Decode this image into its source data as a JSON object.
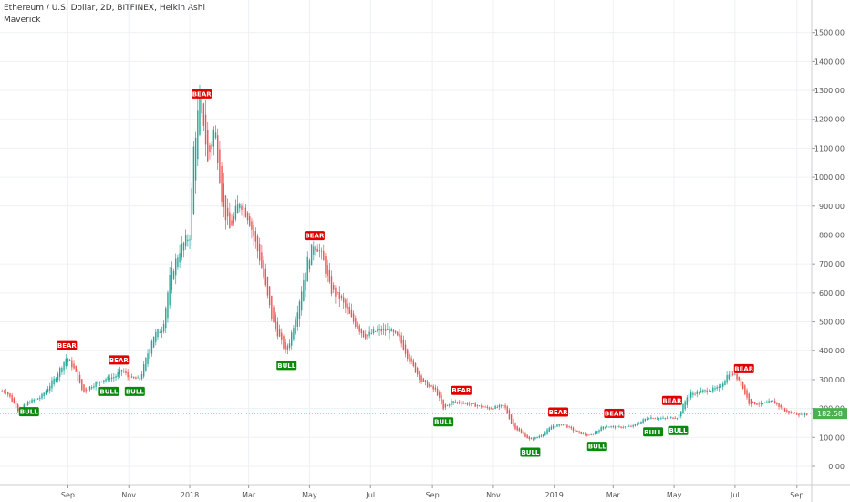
{
  "header": {
    "title": "Ethereum / U.S. Dollar, 2D, BITFINEX, Heikin Ashi",
    "indicator": "Maverick"
  },
  "colors": {
    "up": "#26a69a",
    "down": "#ef5350",
    "bull_label_bg": "#0a8a0a",
    "bear_label_bg": "#e00000",
    "grid": "#eef1f4",
    "price_line": "#26a69a",
    "price_tag_bg": "#4caf50"
  },
  "chart_data": {
    "type": "candlestick",
    "chart_style": "Heikin Ashi",
    "ylim": [
      -60,
      1600
    ],
    "y_ticks": [
      0,
      100,
      200,
      300,
      400,
      500,
      600,
      700,
      800,
      900,
      1000,
      1100,
      1200,
      1300,
      1400,
      1500
    ],
    "y_tick_labels": [
      "0.00",
      "100.00",
      "200.00",
      "300.00",
      "400.00",
      "500.00",
      "600.00",
      "700.00",
      "800.00",
      "900.00",
      "1000.00",
      "1100.00",
      "1200.00",
      "1300.00",
      "1400.00",
      "1500.00"
    ],
    "x_ticks": [
      {
        "label": "Sep",
        "date": "2017-09-01"
      },
      {
        "label": "Nov",
        "date": "2017-11-01"
      },
      {
        "label": "2018",
        "date": "2018-01-01"
      },
      {
        "label": "Mar",
        "date": "2018-03-01"
      },
      {
        "label": "May",
        "date": "2018-05-01"
      },
      {
        "label": "Jul",
        "date": "2018-07-01"
      },
      {
        "label": "Sep",
        "date": "2018-09-01"
      },
      {
        "label": "Nov",
        "date": "2018-11-01"
      },
      {
        "label": "2019",
        "date": "2019-01-01"
      },
      {
        "label": "Mar",
        "date": "2019-03-01"
      },
      {
        "label": "May",
        "date": "2019-05-01"
      },
      {
        "label": "Jul",
        "date": "2019-07-01"
      },
      {
        "label": "Sep",
        "date": "2019-09-01"
      }
    ],
    "price_trend": [
      {
        "date": "2017-07-01",
        "value": 260
      },
      {
        "date": "2017-07-14",
        "value": 190
      },
      {
        "date": "2017-07-22",
        "value": 220
      },
      {
        "date": "2017-08-05",
        "value": 240
      },
      {
        "date": "2017-08-18",
        "value": 300
      },
      {
        "date": "2017-08-31",
        "value": 380
      },
      {
        "date": "2017-09-08",
        "value": 330
      },
      {
        "date": "2017-09-16",
        "value": 255
      },
      {
        "date": "2017-09-25",
        "value": 280
      },
      {
        "date": "2017-10-05",
        "value": 300
      },
      {
        "date": "2017-10-18",
        "value": 310
      },
      {
        "date": "2017-10-25",
        "value": 335
      },
      {
        "date": "2017-11-01",
        "value": 305
      },
      {
        "date": "2017-11-12",
        "value": 300
      },
      {
        "date": "2017-11-25",
        "value": 450
      },
      {
        "date": "2017-12-05",
        "value": 480
      },
      {
        "date": "2017-12-12",
        "value": 650
      },
      {
        "date": "2017-12-22",
        "value": 750
      },
      {
        "date": "2018-01-01",
        "value": 800
      },
      {
        "date": "2018-01-05",
        "value": 1100
      },
      {
        "date": "2018-01-12",
        "value": 1300
      },
      {
        "date": "2018-01-19",
        "value": 1050
      },
      {
        "date": "2018-01-26",
        "value": 1180
      },
      {
        "date": "2018-02-03",
        "value": 900
      },
      {
        "date": "2018-02-10",
        "value": 820
      },
      {
        "date": "2018-02-20",
        "value": 920
      },
      {
        "date": "2018-03-01",
        "value": 860
      },
      {
        "date": "2018-03-12",
        "value": 720
      },
      {
        "date": "2018-03-25",
        "value": 500
      },
      {
        "date": "2018-04-08",
        "value": 390
      },
      {
        "date": "2018-04-20",
        "value": 560
      },
      {
        "date": "2018-04-28",
        "value": 700
      },
      {
        "date": "2018-05-06",
        "value": 780
      },
      {
        "date": "2018-05-14",
        "value": 720
      },
      {
        "date": "2018-05-22",
        "value": 610
      },
      {
        "date": "2018-06-01",
        "value": 580
      },
      {
        "date": "2018-06-12",
        "value": 510
      },
      {
        "date": "2018-06-25",
        "value": 450
      },
      {
        "date": "2018-07-08",
        "value": 470
      },
      {
        "date": "2018-07-20",
        "value": 470
      },
      {
        "date": "2018-07-30",
        "value": 440
      },
      {
        "date": "2018-08-10",
        "value": 360
      },
      {
        "date": "2018-08-22",
        "value": 290
      },
      {
        "date": "2018-09-05",
        "value": 260
      },
      {
        "date": "2018-09-12",
        "value": 195
      },
      {
        "date": "2018-09-20",
        "value": 225
      },
      {
        "date": "2018-10-01",
        "value": 220
      },
      {
        "date": "2018-10-15",
        "value": 210
      },
      {
        "date": "2018-10-28",
        "value": 200
      },
      {
        "date": "2018-11-12",
        "value": 210
      },
      {
        "date": "2018-11-20",
        "value": 140
      },
      {
        "date": "2018-12-08",
        "value": 90
      },
      {
        "date": "2018-12-20",
        "value": 110
      },
      {
        "date": "2018-12-30",
        "value": 140
      },
      {
        "date": "2019-01-10",
        "value": 145
      },
      {
        "date": "2019-01-22",
        "value": 120
      },
      {
        "date": "2019-02-05",
        "value": 105
      },
      {
        "date": "2019-02-20",
        "value": 140
      },
      {
        "date": "2019-03-05",
        "value": 135
      },
      {
        "date": "2019-03-20",
        "value": 138
      },
      {
        "date": "2019-04-05",
        "value": 170
      },
      {
        "date": "2019-04-20",
        "value": 165
      },
      {
        "date": "2019-05-05",
        "value": 170
      },
      {
        "date": "2019-05-15",
        "value": 250
      },
      {
        "date": "2019-05-30",
        "value": 260
      },
      {
        "date": "2019-06-15",
        "value": 270
      },
      {
        "date": "2019-06-26",
        "value": 330
      },
      {
        "date": "2019-07-05",
        "value": 300
      },
      {
        "date": "2019-07-15",
        "value": 220
      },
      {
        "date": "2019-07-28",
        "value": 215
      },
      {
        "date": "2019-08-08",
        "value": 225
      },
      {
        "date": "2019-08-20",
        "value": 190
      },
      {
        "date": "2019-09-05",
        "value": 178
      },
      {
        "date": "2019-09-12",
        "value": 182.58
      }
    ],
    "signals": [
      {
        "text": "BULL",
        "type": "bull",
        "date": "2017-07-24",
        "value": 230
      },
      {
        "text": "BEAR",
        "type": "bear",
        "date": "2017-08-31",
        "value": 380
      },
      {
        "text": "BULL",
        "type": "bull",
        "date": "2017-10-12",
        "value": 300
      },
      {
        "text": "BEAR",
        "type": "bear",
        "date": "2017-10-22",
        "value": 330
      },
      {
        "text": "BULL",
        "type": "bull",
        "date": "2017-11-07",
        "value": 300
      },
      {
        "text": "BEAR",
        "type": "bear",
        "date": "2018-01-13",
        "value": 1250
      },
      {
        "text": "BULL",
        "type": "bull",
        "date": "2018-04-08",
        "value": 390
      },
      {
        "text": "BEAR",
        "type": "bear",
        "date": "2018-05-06",
        "value": 760
      },
      {
        "text": "BULL",
        "type": "bull",
        "date": "2018-09-12",
        "value": 195
      },
      {
        "text": "BEAR",
        "type": "bear",
        "date": "2018-09-30",
        "value": 225
      },
      {
        "text": "BULL",
        "type": "bull",
        "date": "2018-12-08",
        "value": 90
      },
      {
        "text": "BEAR",
        "type": "bear",
        "date": "2019-01-05",
        "value": 150
      },
      {
        "text": "BULL",
        "type": "bull",
        "date": "2019-02-13",
        "value": 110
      },
      {
        "text": "BEAR",
        "type": "bear",
        "date": "2019-03-02",
        "value": 145
      },
      {
        "text": "BULL",
        "type": "bull",
        "date": "2019-04-10",
        "value": 160
      },
      {
        "text": "BEAR",
        "type": "bear",
        "date": "2019-04-29",
        "value": 190
      },
      {
        "text": "BULL",
        "type": "bull",
        "date": "2019-05-05",
        "value": 165
      },
      {
        "text": "BEAR",
        "type": "bear",
        "date": "2019-07-10",
        "value": 300
      }
    ],
    "last_price": 182.58,
    "last_price_label": "182.58",
    "grid": true
  }
}
